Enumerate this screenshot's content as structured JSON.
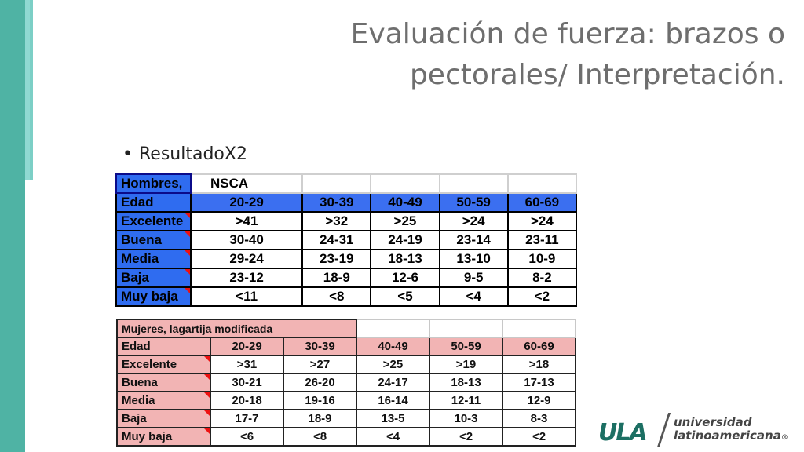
{
  "slide": {
    "title_line1": "Evaluación de fuerza: brazos o",
    "title_line2": "pectorales/ Interpretación.",
    "bullet": "ResultadoX2",
    "bullet_marker": "•"
  },
  "men_table": {
    "header_label": "Hombres,",
    "header_source": "NSCA",
    "rows": [
      {
        "label": "Edad",
        "values": [
          "20-29",
          "30-39",
          "40-49",
          "50-59",
          "60-69"
        ]
      },
      {
        "label": "Excelente",
        "values": [
          ">41",
          ">32",
          ">25",
          ">24",
          ">24"
        ]
      },
      {
        "label": "Buena",
        "values": [
          "30-40",
          "24-31",
          "24-19",
          "23-14",
          "23-11"
        ]
      },
      {
        "label": "Media",
        "values": [
          "29-24",
          "23-19",
          "18-13",
          "13-10",
          "10-9"
        ]
      },
      {
        "label": "Baja",
        "values": [
          "23-12",
          "18-9",
          "12-6",
          "9-5",
          "8-2"
        ]
      },
      {
        "label": "Muy baja",
        "values": [
          "<11",
          "<8",
          "<5",
          "<4",
          "<2"
        ]
      }
    ]
  },
  "women_table": {
    "header_label": "Mujeres, lagartija modificada",
    "rows": [
      {
        "label": "Edad",
        "values": [
          "20-29",
          "30-39",
          "40-49",
          "50-59",
          "60-69"
        ]
      },
      {
        "label": "Excelente",
        "values": [
          ">31",
          ">27",
          ">25",
          ">19",
          ">18"
        ]
      },
      {
        "label": "Buena",
        "values": [
          "30-21",
          "26-20",
          "24-17",
          "18-13",
          "17-13"
        ]
      },
      {
        "label": "Media",
        "values": [
          "20-18",
          "19-16",
          "16-14",
          "12-11",
          "12-9"
        ]
      },
      {
        "label": "Baja",
        "values": [
          "17-7",
          "18-9",
          "13-5",
          "10-3",
          "8-3"
        ]
      },
      {
        "label": "Muy baja",
        "values": [
          "<6",
          "<8",
          "<4",
          "<2",
          "<2"
        ]
      }
    ]
  },
  "logo": {
    "mark": "ULA",
    "line1": "universidad",
    "line2": "latinoamericana",
    "registered": "®"
  },
  "colors": {
    "band_outer": "#4fb3a4",
    "band_inner": "#8fd9d2",
    "men_header_blue": "#2f6cf0",
    "women_header_pink": "#f2b4b4",
    "logo_green": "#1c6f63"
  }
}
